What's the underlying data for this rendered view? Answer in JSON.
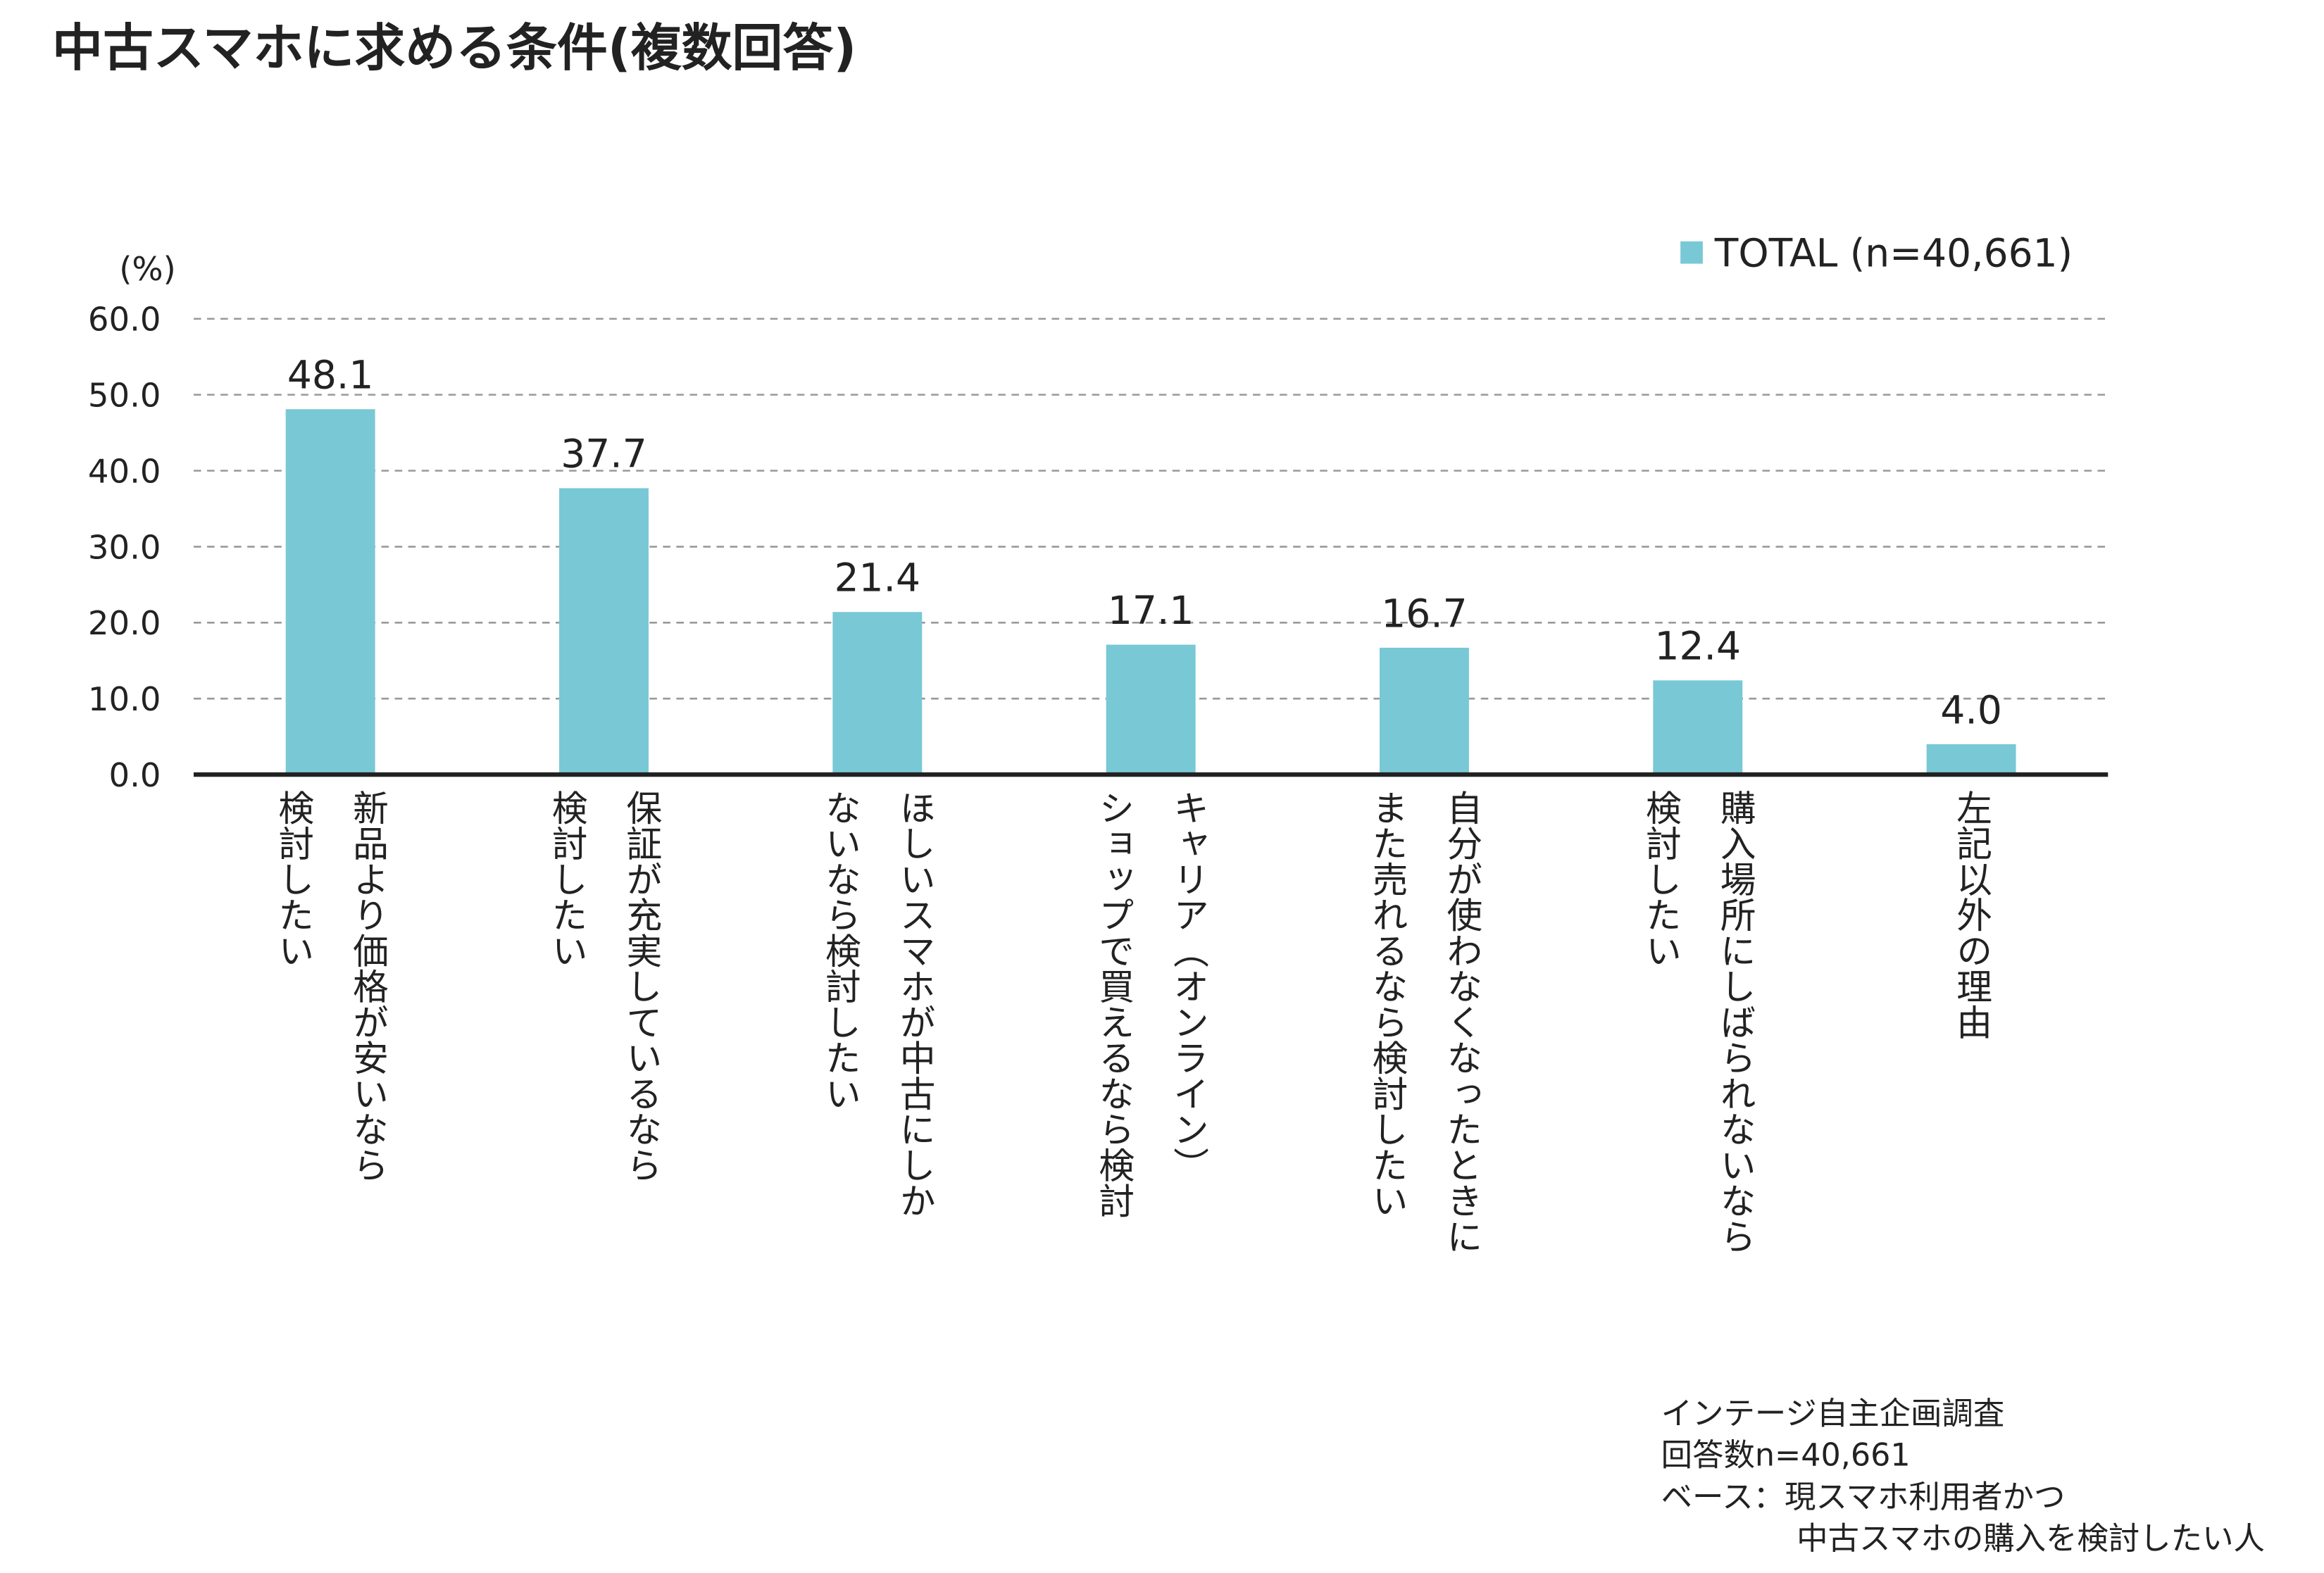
{
  "chart_data": {
    "type": "bar",
    "title": "中古スマホに求める条件(複数回答)",
    "y_unit": "(%)",
    "categories": [
      [
        "新品より価格が安いなら",
        "検討したい"
      ],
      [
        "保証が充実しているなら",
        "検討したい"
      ],
      [
        "ほしいスマホが中古にしか",
        "ないなら検討したい"
      ],
      [
        "キャリア（オンライン）",
        "ショップで買えるなら検討"
      ],
      [
        "自分が使わなくなったときに",
        "また売れるなら検討したい"
      ],
      [
        "購入場所にしばられないなら",
        "検討したい"
      ],
      [
        "左記以外の理由"
      ]
    ],
    "series": [
      {
        "name": "TOTAL (n=40,661)",
        "color": "#79c8d6",
        "values": [
          48.1,
          37.7,
          21.4,
          17.1,
          16.7,
          12.4,
          4.0
        ],
        "value_labels": [
          "48.1",
          "37.7",
          "21.4",
          "17.1",
          "16.7",
          "12.4",
          "4.0"
        ]
      }
    ],
    "ylim": [
      0,
      60
    ],
    "yticks": [
      {
        "value": 0,
        "label": "0.0"
      },
      {
        "value": 10,
        "label": "10.0"
      },
      {
        "value": 20,
        "label": "20.0"
      },
      {
        "value": 30,
        "label": "30.0"
      },
      {
        "value": 40,
        "label": "40.0"
      },
      {
        "value": 50,
        "label": "50.0"
      },
      {
        "value": 60,
        "label": "60.0"
      }
    ],
    "grid": true,
    "legend": "top-right",
    "notes": [
      "インテージ自主企画調査",
      "回答数n=40,661",
      "ベース：現スマホ利用者かつ",
      "中古スマホの購入を検討したい人"
    ]
  }
}
